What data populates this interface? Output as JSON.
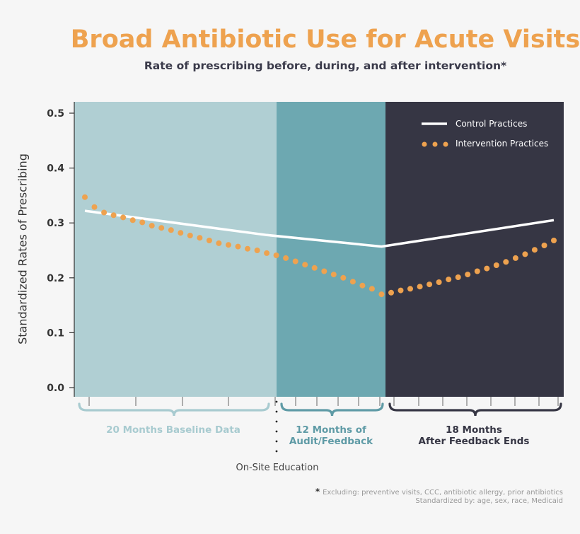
{
  "title": "Broad Antibiotic Use for Acute Visits",
  "subtitle": "Rate of prescribing before, during, and after intervention*",
  "colors": {
    "baseline": "#b0cfd3",
    "audit": "#6da8b1",
    "after": "#363644",
    "control": "#ffffff",
    "intervention": "#eea24f",
    "title": "#eea24f",
    "baseline_label": "#a8cbd0",
    "audit_label": "#5f9ba6",
    "after_label": "#363644"
  },
  "periods": {
    "baseline": "20 Months Baseline Data",
    "audit_line1": "12 Months of",
    "audit_line2": "Audit/Feedback",
    "after_line1": "18 Months",
    "after_line2": "After Feedback Ends",
    "onsite": "On-Site Education"
  },
  "footnote": {
    "star": "*",
    "line1": "Excluding: preventive visits, CCC, antibiotic allergy, prior antibiotics",
    "line2": "Standardized by: age, sex, race, Medicaid"
  },
  "chart_data": {
    "type": "line",
    "title": "Broad Antibiotic Use for Acute Visits",
    "subtitle": "Rate of prescribing before, during, and after intervention*",
    "ylabel": "Standardized Rates of Prescribing",
    "xlabel": "",
    "ylim": [
      0.0,
      0.5
    ],
    "yticks": [
      "0.0",
      "0.1",
      "0.2",
      "0.3",
      "0.4",
      "0.5"
    ],
    "xlim": [
      0,
      50
    ],
    "legend_position": "top-right",
    "series": [
      {
        "name": "Control Practices",
        "style": "solid",
        "x": [
          1,
          20,
          32,
          50
        ],
        "y": [
          0.322,
          0.278,
          0.257,
          0.305
        ]
      },
      {
        "name": "Intervention Practices",
        "style": "dotted",
        "x": [
          1,
          2,
          3,
          4,
          5,
          6,
          7,
          8,
          9,
          10,
          11,
          12,
          13,
          14,
          15,
          16,
          17,
          18,
          19,
          20,
          21,
          22,
          23,
          24,
          25,
          26,
          27,
          28,
          29,
          30,
          31,
          32,
          33,
          34,
          35,
          36,
          37,
          38,
          39,
          40,
          41,
          42,
          43,
          44,
          45,
          46,
          47,
          48,
          49,
          50
        ],
        "y": [
          0.347,
          0.329,
          0.319,
          0.314,
          0.31,
          0.305,
          0.301,
          0.295,
          0.291,
          0.287,
          0.282,
          0.277,
          0.273,
          0.268,
          0.263,
          0.26,
          0.257,
          0.253,
          0.25,
          0.245,
          0.241,
          0.236,
          0.23,
          0.224,
          0.218,
          0.212,
          0.206,
          0.2,
          0.193,
          0.186,
          0.18,
          0.17,
          0.173,
          0.177,
          0.18,
          0.184,
          0.188,
          0.192,
          0.197,
          0.201,
          0.206,
          0.212,
          0.217,
          0.223,
          0.229,
          0.236,
          0.243,
          0.251,
          0.259,
          0.268
        ]
      }
    ],
    "periods": [
      {
        "label": "20 Months Baseline Data",
        "x_start": 0,
        "x_end": 20
      },
      {
        "label": "12 Months of Audit/Feedback",
        "x_start": 20,
        "x_end": 32
      },
      {
        "label": "18 Months After Feedback Ends",
        "x_start": 32,
        "x_end": 50
      }
    ],
    "annotations": [
      "On-Site Education"
    ]
  }
}
